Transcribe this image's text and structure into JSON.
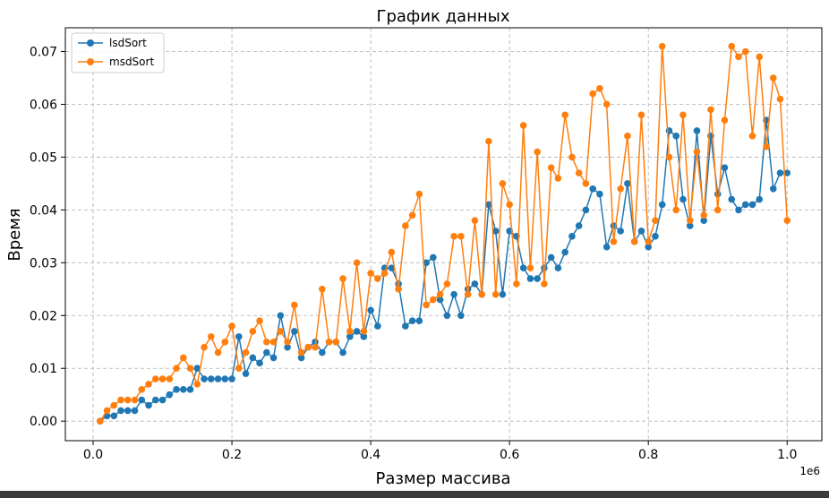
{
  "chart_data": {
    "type": "line",
    "title": "График данных",
    "xlabel": "Размер массива",
    "ylabel": "Время",
    "x_offset_label": "1e6",
    "xlim": [
      -0.04,
      1.05
    ],
    "ylim": [
      -0.0037,
      0.0745
    ],
    "x_ticks": [
      0.0,
      0.2,
      0.4,
      0.6,
      0.8,
      1.0
    ],
    "x_tick_labels": [
      "0.0",
      "0.2",
      "0.4",
      "0.6",
      "0.8",
      "1.0"
    ],
    "y_ticks": [
      0.0,
      0.01,
      0.02,
      0.03,
      0.04,
      0.05,
      0.06,
      0.07
    ],
    "y_tick_labels": [
      "0.00",
      "0.01",
      "0.02",
      "0.03",
      "0.04",
      "0.05",
      "0.06",
      "0.07"
    ],
    "grid": true,
    "legend_position": "top-left",
    "x": [
      0.01,
      0.02,
      0.03,
      0.04,
      0.05,
      0.06,
      0.07,
      0.08,
      0.09,
      0.1,
      0.11,
      0.12,
      0.13,
      0.14,
      0.15,
      0.16,
      0.17,
      0.18,
      0.19,
      0.2,
      0.21,
      0.22,
      0.23,
      0.24,
      0.25,
      0.26,
      0.27,
      0.28,
      0.29,
      0.3,
      0.31,
      0.32,
      0.33,
      0.34,
      0.35,
      0.36,
      0.37,
      0.38,
      0.39,
      0.4,
      0.41,
      0.42,
      0.43,
      0.44,
      0.45,
      0.46,
      0.47,
      0.48,
      0.49,
      0.5,
      0.51,
      0.52,
      0.53,
      0.54,
      0.55,
      0.56,
      0.57,
      0.58,
      0.59,
      0.6,
      0.61,
      0.62,
      0.63,
      0.64,
      0.65,
      0.66,
      0.67,
      0.68,
      0.69,
      0.7,
      0.71,
      0.72,
      0.73,
      0.74,
      0.75,
      0.76,
      0.77,
      0.78,
      0.79,
      0.8,
      0.81,
      0.82,
      0.83,
      0.84,
      0.85,
      0.86,
      0.87,
      0.88,
      0.89,
      0.9,
      0.91,
      0.92,
      0.93,
      0.94,
      0.95,
      0.96,
      0.97,
      0.98,
      0.99,
      1.0
    ],
    "series": [
      {
        "name": "lsdSort",
        "color": "#1f77b4",
        "values": [
          0.0,
          0.001,
          0.001,
          0.002,
          0.002,
          0.002,
          0.004,
          0.003,
          0.004,
          0.004,
          0.005,
          0.006,
          0.006,
          0.006,
          0.01,
          0.008,
          0.008,
          0.008,
          0.008,
          0.008,
          0.016,
          0.009,
          0.012,
          0.011,
          0.013,
          0.012,
          0.02,
          0.014,
          0.017,
          0.012,
          0.014,
          0.015,
          0.013,
          0.015,
          0.015,
          0.013,
          0.016,
          0.017,
          0.016,
          0.021,
          0.018,
          0.029,
          0.029,
          0.026,
          0.018,
          0.019,
          0.019,
          0.03,
          0.031,
          0.023,
          0.02,
          0.024,
          0.02,
          0.025,
          0.026,
          0.024,
          0.041,
          0.036,
          0.024,
          0.036,
          0.035,
          0.029,
          0.027,
          0.027,
          0.029,
          0.031,
          0.029,
          0.032,
          0.035,
          0.037,
          0.04,
          0.044,
          0.043,
          0.033,
          0.037,
          0.036,
          0.045,
          0.034,
          0.036,
          0.033,
          0.035,
          0.041,
          0.055,
          0.054,
          0.042,
          0.037,
          0.055,
          0.038,
          0.054,
          0.043,
          0.048,
          0.042,
          0.04,
          0.041,
          0.041,
          0.042,
          0.057,
          0.044,
          0.047,
          0.047
        ]
      },
      {
        "name": "msdSort",
        "color": "#ff7f0e",
        "values": [
          0.0,
          0.002,
          0.003,
          0.004,
          0.004,
          0.004,
          0.006,
          0.007,
          0.008,
          0.008,
          0.008,
          0.01,
          0.012,
          0.01,
          0.007,
          0.014,
          0.016,
          0.013,
          0.015,
          0.018,
          0.01,
          0.013,
          0.017,
          0.019,
          0.015,
          0.015,
          0.017,
          0.015,
          0.022,
          0.013,
          0.014,
          0.014,
          0.025,
          0.015,
          0.015,
          0.027,
          0.017,
          0.03,
          0.017,
          0.028,
          0.027,
          0.028,
          0.032,
          0.025,
          0.037,
          0.039,
          0.043,
          0.022,
          0.023,
          0.024,
          0.026,
          0.035,
          0.035,
          0.024,
          0.038,
          0.024,
          0.053,
          0.024,
          0.045,
          0.041,
          0.026,
          0.056,
          0.029,
          0.051,
          0.026,
          0.048,
          0.046,
          0.058,
          0.05,
          0.047,
          0.045,
          0.062,
          0.063,
          0.06,
          0.034,
          0.044,
          0.054,
          0.034,
          0.058,
          0.034,
          0.038,
          0.071,
          0.05,
          0.04,
          0.058,
          0.038,
          0.051,
          0.039,
          0.059,
          0.04,
          0.057,
          0.071,
          0.069,
          0.07,
          0.054,
          0.069,
          0.052,
          0.065,
          0.061,
          0.038
        ]
      }
    ]
  }
}
